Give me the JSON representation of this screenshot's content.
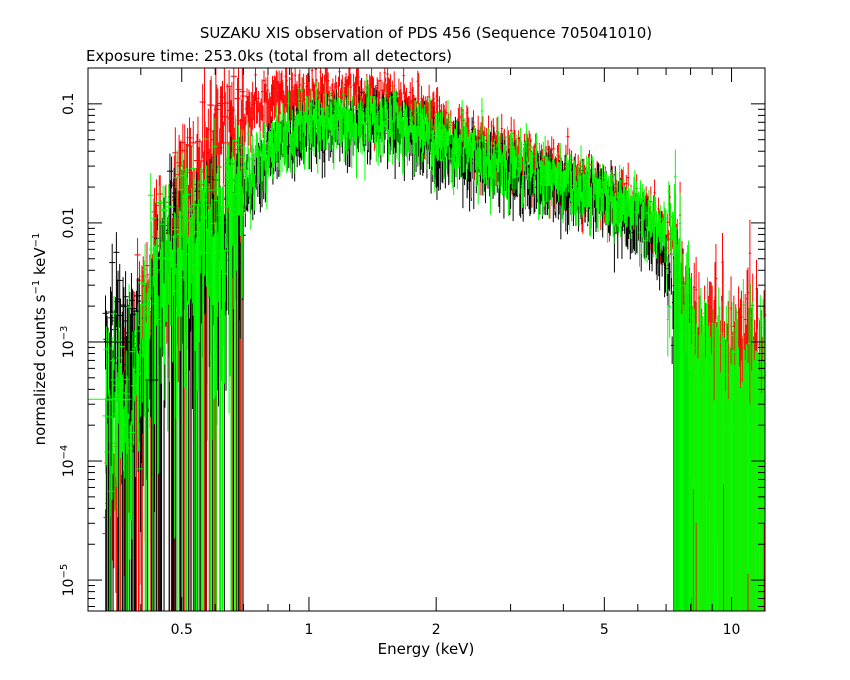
{
  "chart_data": {
    "type": "scatter",
    "title": "SUZAKU XIS observation of PDS 456 (Sequence 705041010)",
    "subtitle": "Exposure time: 253.0ks (total from all detectors)",
    "xlabel": "Energy (keV)",
    "ylabel_parts": {
      "a": "normalized counts s",
      "sup1": "−1",
      "b": " keV",
      "sup2": "−1"
    },
    "x_scale": "log",
    "y_scale": "log",
    "xlim": [
      0.3,
      12.0
    ],
    "ylim": [
      5.5e-06,
      0.2
    ],
    "x_ticks": [
      {
        "value": 0.5,
        "label": "0.5"
      },
      {
        "value": 1,
        "label": "1"
      },
      {
        "value": 2,
        "label": "2"
      },
      {
        "value": 5,
        "label": "5"
      },
      {
        "value": 10,
        "label": "10"
      }
    ],
    "y_ticks": [
      {
        "value": 0.1,
        "label": "0.1",
        "mant": "0.1",
        "exp": ""
      },
      {
        "value": 0.01,
        "label": "0.01",
        "mant": "0.01",
        "exp": ""
      },
      {
        "value": 0.001,
        "label": "10−3",
        "mant": "10",
        "exp": "−3"
      },
      {
        "value": 0.0001,
        "label": "10−4",
        "mant": "10",
        "exp": "−4"
      },
      {
        "value": 1e-05,
        "label": "10−5",
        "mant": "10",
        "exp": "−5"
      }
    ],
    "grid": false,
    "legend": "none",
    "series": [
      {
        "color": "#ff0000",
        "shape": [
          [
            0.33,
            3e-05
          ],
          [
            0.36,
            0.0003
          ],
          [
            0.4,
            0.002
          ],
          [
            0.45,
            0.008
          ],
          [
            0.5,
            0.02
          ],
          [
            0.55,
            0.035
          ],
          [
            0.6,
            0.05
          ],
          [
            0.7,
            0.09
          ],
          [
            0.8,
            0.12
          ],
          [
            1.0,
            0.13
          ],
          [
            1.5,
            0.13
          ],
          [
            2.0,
            0.09
          ],
          [
            2.2,
            0.06
          ],
          [
            3.0,
            0.04
          ],
          [
            4.0,
            0.028
          ],
          [
            5.0,
            0.02
          ],
          [
            6.0,
            0.014
          ],
          [
            7.0,
            0.009
          ],
          [
            7.5,
            0.004
          ],
          [
            8.0,
            0.0015
          ],
          [
            9.0,
            0.001
          ],
          [
            10.0,
            0.001
          ],
          [
            12.0,
            0.001
          ]
        ]
      },
      {
        "color": "#000000",
        "shape": [
          [
            0.33,
            0.001
          ],
          [
            0.38,
            0.001
          ],
          [
            0.42,
            0.0005
          ],
          [
            0.45,
            0.005
          ],
          [
            0.5,
            0.007
          ],
          [
            0.55,
            0.007
          ],
          [
            0.6,
            0.009
          ],
          [
            0.7,
            0.02
          ],
          [
            0.8,
            0.04
          ],
          [
            1.0,
            0.07
          ],
          [
            1.5,
            0.08
          ],
          [
            2.0,
            0.05
          ],
          [
            3.0,
            0.03
          ],
          [
            4.0,
            0.022
          ],
          [
            5.0,
            0.017
          ],
          [
            6.0,
            0.012
          ],
          [
            7.0,
            0.006
          ],
          [
            7.5,
            0.002
          ],
          [
            8.0,
            0.0008
          ]
        ]
      },
      {
        "color": "#00ff00",
        "shape": [
          [
            0.33,
            0.00033
          ],
          [
            0.38,
            0.0004
          ],
          [
            0.42,
            0.003
          ],
          [
            0.45,
            0.006
          ],
          [
            0.5,
            0.009
          ],
          [
            0.55,
            0.01
          ],
          [
            0.6,
            0.012
          ],
          [
            0.7,
            0.025
          ],
          [
            0.8,
            0.05
          ],
          [
            1.0,
            0.08
          ],
          [
            1.5,
            0.09
          ],
          [
            2.0,
            0.06
          ],
          [
            3.0,
            0.035
          ],
          [
            4.0,
            0.026
          ],
          [
            5.0,
            0.019
          ],
          [
            6.0,
            0.014
          ],
          [
            7.0,
            0.008
          ],
          [
            7.5,
            0.003
          ],
          [
            8.0,
            0.0015
          ],
          [
            9.0,
            0.0008
          ],
          [
            10.0,
            0.0006
          ],
          [
            12.0,
            0.0005
          ]
        ]
      }
    ]
  }
}
